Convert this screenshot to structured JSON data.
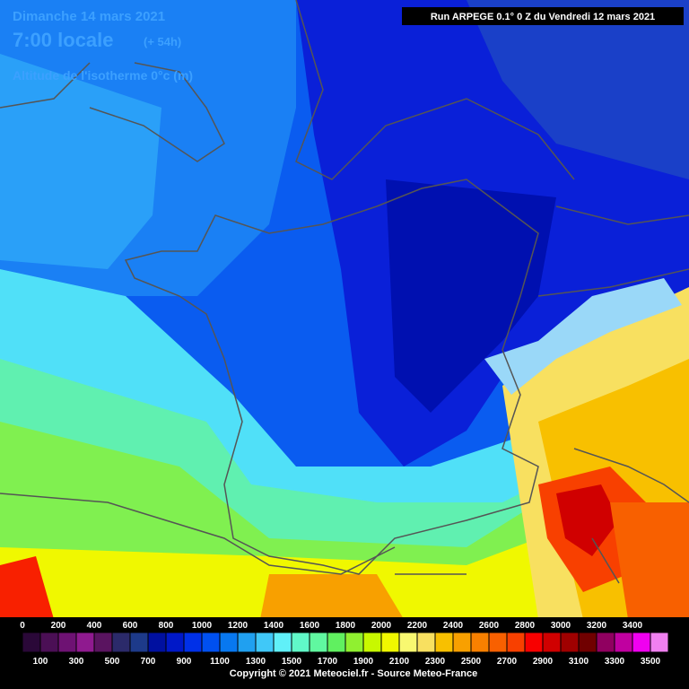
{
  "header": {
    "date": "Dimanche 14 mars 2021",
    "time": "7:00 locale",
    "lead": "(+ 54h)",
    "subtitle": "Altitude de l'isotherme 0°c (m)"
  },
  "run": "Run ARPEGE 0.1° 0 Z du Vendredi 12 mars 2021",
  "legend": {
    "top_labels": [
      0,
      200,
      400,
      600,
      800,
      1000,
      1200,
      1400,
      1600,
      1800,
      2000,
      2200,
      2400,
      2600,
      2800,
      3000,
      3200,
      3400
    ],
    "bottom_labels": [
      100,
      300,
      500,
      700,
      900,
      1100,
      1300,
      1500,
      1700,
      1900,
      2100,
      2300,
      2500,
      2700,
      2900,
      3100,
      3300,
      3500
    ],
    "colors": [
      "#2a0838",
      "#4b0f55",
      "#6e1273",
      "#8f1a8f",
      "#5a1460",
      "#2b2a6a",
      "#1d3a8a",
      "#0010a0",
      "#0018c8",
      "#0030e8",
      "#0050f0",
      "#0878f0",
      "#20a0f0",
      "#40c8f8",
      "#60f0f8",
      "#60f8c8",
      "#60f8a0",
      "#60f060",
      "#90f030",
      "#c8f800",
      "#f0f800",
      "#f8f870",
      "#f8e060",
      "#f8c000",
      "#f8a000",
      "#f88000",
      "#f86000",
      "#f84000",
      "#f80000",
      "#d00000",
      "#a00000",
      "#700000",
      "#900060",
      "#c000a0",
      "#f000f0",
      "#f080f0"
    ]
  },
  "copyright": "Copyright © 2021 Meteociel.fr - Source Meteo-France"
}
